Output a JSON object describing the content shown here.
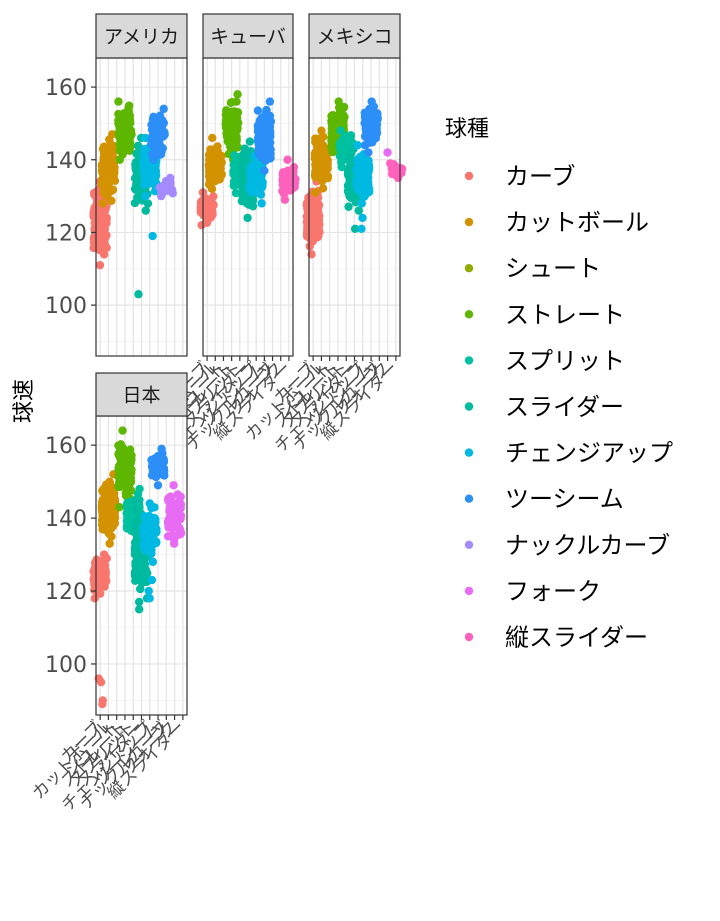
{
  "chart_data": {
    "type": "scatter",
    "ylabel": "球速",
    "ylim": [
      86,
      168
    ],
    "yticks": [
      100,
      120,
      140,
      160
    ],
    "legend": {
      "title": "球種",
      "position": "right",
      "entries": [
        {
          "name": "カーブ",
          "color": "#F8766D"
        },
        {
          "name": "カットボール",
          "color": "#D39200"
        },
        {
          "name": "シュート",
          "color": "#93AA00"
        },
        {
          "name": "ストレート",
          "color": "#5DB600"
        },
        {
          "name": "スプリット",
          "color": "#00C19F"
        },
        {
          "name": "スライダー",
          "color": "#00BA9F"
        },
        {
          "name": "チェンジアップ",
          "color": "#00B9E3"
        },
        {
          "name": "ツーシーム",
          "color": "#2C8FF7"
        },
        {
          "name": "ナックルカーブ",
          "color": "#A58AFF"
        },
        {
          "name": "フォーク",
          "color": "#E76BF3"
        },
        {
          "name": "縦スライダー",
          "color": "#FF62BC"
        }
      ]
    },
    "panels": [
      {
        "strip": "アメリカ",
        "x_tick_labels": [
          "カーブ",
          "カットボール",
          "シュート",
          "ストレート",
          "スプリット",
          "スライダー",
          "チェンジアップ",
          "ツーシーム",
          "ナックルカーブ",
          "フォーク",
          "縦スライダー"
        ],
        "clusters": [
          {
            "pitch": "カーブ",
            "x": 1,
            "min": 111,
            "max": 134
          },
          {
            "pitch": "カットボール",
            "x": 2,
            "min": 128,
            "max": 147
          },
          {
            "pitch": "ストレート",
            "x": 4,
            "min": 140,
            "max": 156
          },
          {
            "pitch": "スライダー",
            "x": 6,
            "min": 126,
            "max": 146
          },
          {
            "pitch": "チェンジアップ",
            "x": 7,
            "min": 130,
            "max": 146
          },
          {
            "pitch": "ツーシーム",
            "x": 8,
            "min": 140,
            "max": 154
          },
          {
            "pitch": "ナックルカーブ",
            "x": 9,
            "min": 130,
            "max": 135
          }
        ],
        "outliers": [
          {
            "pitch": "スライダー",
            "x": 6,
            "y": 103
          },
          {
            "pitch": "チェンジアップ",
            "x": 7,
            "y": 119
          }
        ]
      },
      {
        "strip": "キューバ",
        "x_tick_labels": [
          "カーブ",
          "カットボール",
          "シュート",
          "ストレート",
          "スプリット",
          "スライダー",
          "チェンジアップ",
          "ツーシーム",
          "ナックルカーブ",
          "フォーク",
          "縦スライダー"
        ],
        "clusters": [
          {
            "pitch": "カーブ",
            "x": 1,
            "min": 122,
            "max": 131
          },
          {
            "pitch": "カットボール",
            "x": 2,
            "min": 132,
            "max": 146
          },
          {
            "pitch": "ストレート",
            "x": 4,
            "min": 140,
            "max": 158
          },
          {
            "pitch": "スプリット",
            "x": 5,
            "min": 130,
            "max": 143
          },
          {
            "pitch": "スライダー",
            "x": 6,
            "min": 124,
            "max": 145
          },
          {
            "pitch": "チェンジアップ",
            "x": 7,
            "min": 128,
            "max": 142
          },
          {
            "pitch": "ツーシーム",
            "x": 8,
            "min": 137,
            "max": 156
          },
          {
            "pitch": "縦スライダー",
            "x": 11,
            "min": 129,
            "max": 140
          }
        ],
        "outliers": []
      },
      {
        "strip": "メキシコ",
        "x_tick_labels": [
          "カーブ",
          "カットボール",
          "シュート",
          "ストレート",
          "スプリット",
          "スライダー",
          "チェンジアップ",
          "ツーシーム",
          "ナックルカーブ",
          "フォーク",
          "縦スライダー"
        ],
        "clusters": [
          {
            "pitch": "カーブ",
            "x": 1,
            "min": 114,
            "max": 134
          },
          {
            "pitch": "カットボール",
            "x": 2,
            "min": 131,
            "max": 148
          },
          {
            "pitch": "ストレート",
            "x": 4,
            "min": 140,
            "max": 156
          },
          {
            "pitch": "スプリット",
            "x": 5,
            "min": 138,
            "max": 148
          },
          {
            "pitch": "スライダー",
            "x": 6,
            "min": 126,
            "max": 143
          },
          {
            "pitch": "チェンジアップ",
            "x": 7,
            "min": 128,
            "max": 144
          },
          {
            "pitch": "ツーシーム",
            "x": 8,
            "min": 142,
            "max": 156
          },
          {
            "pitch": "縦スライダー",
            "x": 11,
            "min": 135,
            "max": 139
          }
        ],
        "outliers": [
          {
            "pitch": "スライダー",
            "x": 6,
            "y": 121
          },
          {
            "pitch": "チェンジアップ",
            "x": 7,
            "y": 121
          },
          {
            "pitch": "チェンジアップ",
            "x": 7,
            "y": 124
          },
          {
            "pitch": "フォーク",
            "x": 10,
            "y": 142
          }
        ]
      },
      {
        "strip": "日本",
        "x_tick_labels": [
          "カーブ",
          "カットボール",
          "シュート",
          "ストレート",
          "スプリット",
          "スライダー",
          "チェンジアップ",
          "ツーシーム",
          "ナックルカーブ",
          "フォーク",
          "縦スライダー"
        ],
        "clusters": [
          {
            "pitch": "カーブ",
            "x": 1,
            "min": 118,
            "max": 130
          },
          {
            "pitch": "カットボール",
            "x": 2,
            "min": 133,
            "max": 152
          },
          {
            "pitch": "ストレート",
            "x": 4,
            "min": 143,
            "max": 164
          },
          {
            "pitch": "スプリット",
            "x": 5,
            "min": 134,
            "max": 148
          },
          {
            "pitch": "スライダー",
            "x": 6,
            "min": 118,
            "max": 145
          },
          {
            "pitch": "チェンジアップ",
            "x": 7,
            "min": 128,
            "max": 144
          },
          {
            "pitch": "ツーシーム",
            "x": 8,
            "min": 149,
            "max": 159
          },
          {
            "pitch": "フォーク",
            "x": 10,
            "min": 133,
            "max": 149
          }
        ],
        "outliers": [
          {
            "pitch": "カーブ",
            "x": 1,
            "y": 89
          },
          {
            "pitch": "カーブ",
            "x": 1,
            "y": 90
          },
          {
            "pitch": "カーブ",
            "x": 1,
            "y": 95
          },
          {
            "pitch": "カーブ",
            "x": 1,
            "y": 96
          },
          {
            "pitch": "スライダー",
            "x": 6,
            "y": 115
          },
          {
            "pitch": "スライダー",
            "x": 6,
            "y": 117
          },
          {
            "pitch": "チェンジアップ",
            "x": 7,
            "y": 118
          },
          {
            "pitch": "チェンジアップ",
            "x": 7,
            "y": 120
          },
          {
            "pitch": "チェンジアップ",
            "x": 7,
            "y": 123
          }
        ]
      }
    ],
    "grid": true
  }
}
